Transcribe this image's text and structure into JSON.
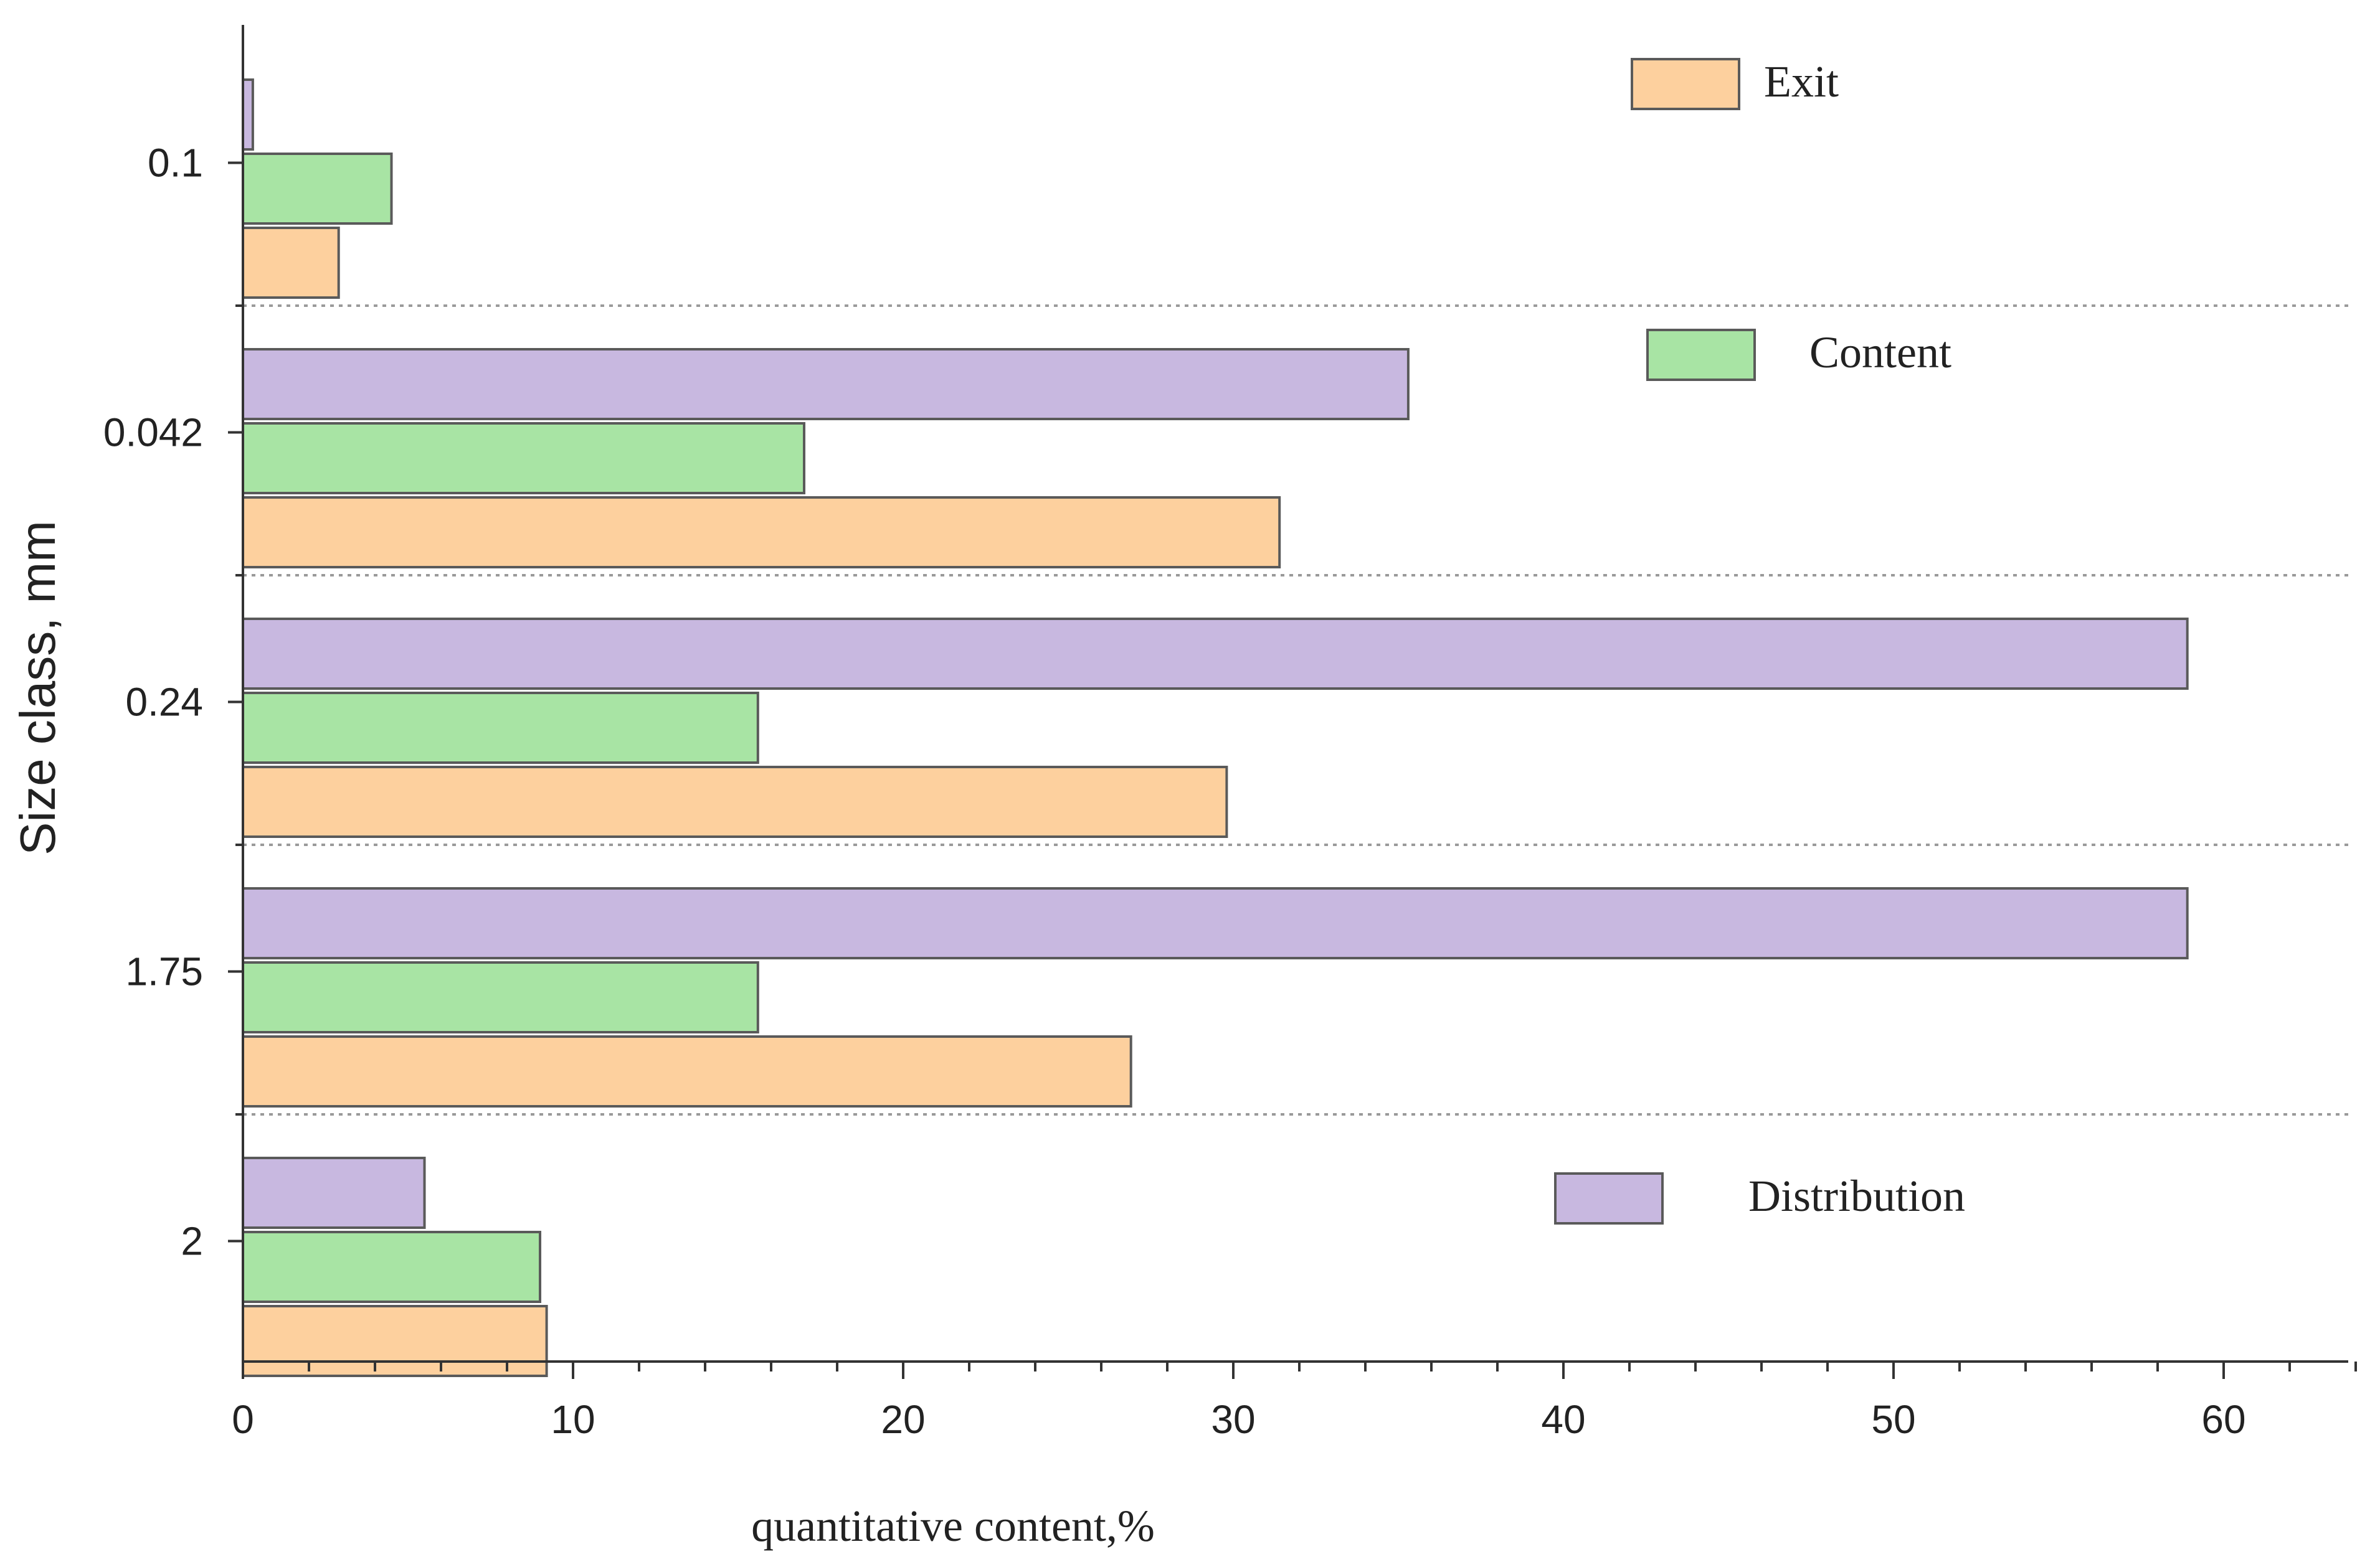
{
  "chart_data": {
    "type": "bar",
    "orientation": "horizontal",
    "categories": [
      "0.1",
      "0.042",
      "0.24",
      "1.75",
      "2"
    ],
    "series": [
      {
        "name": "Distribution",
        "color": "#c8b8e0",
        "values": [
          0.3,
          35.3,
          58.9,
          58.9,
          5.5
        ]
      },
      {
        "name": "Content",
        "color": "#a8e4a4",
        "values": [
          4.5,
          17.0,
          15.6,
          15.6,
          9.0
        ]
      },
      {
        "name": "Exit",
        "color": "#fdd09e",
        "values": [
          2.9,
          31.4,
          29.8,
          26.9,
          9.2
        ]
      }
    ],
    "title": "",
    "xlabel": "quantitative content,%",
    "ylabel": "Size class, mm",
    "xlim": [
      0,
      64
    ],
    "x_ticks": [
      0,
      10,
      20,
      30,
      40,
      50,
      60
    ],
    "x_tick_labels": [
      "0",
      "10",
      "20",
      "30",
      "40",
      "50",
      "60"
    ],
    "legend_order": [
      "Exit",
      "Content",
      "Distribution"
    ],
    "legend_placement": "right",
    "grid": "dotted separators between categories"
  }
}
